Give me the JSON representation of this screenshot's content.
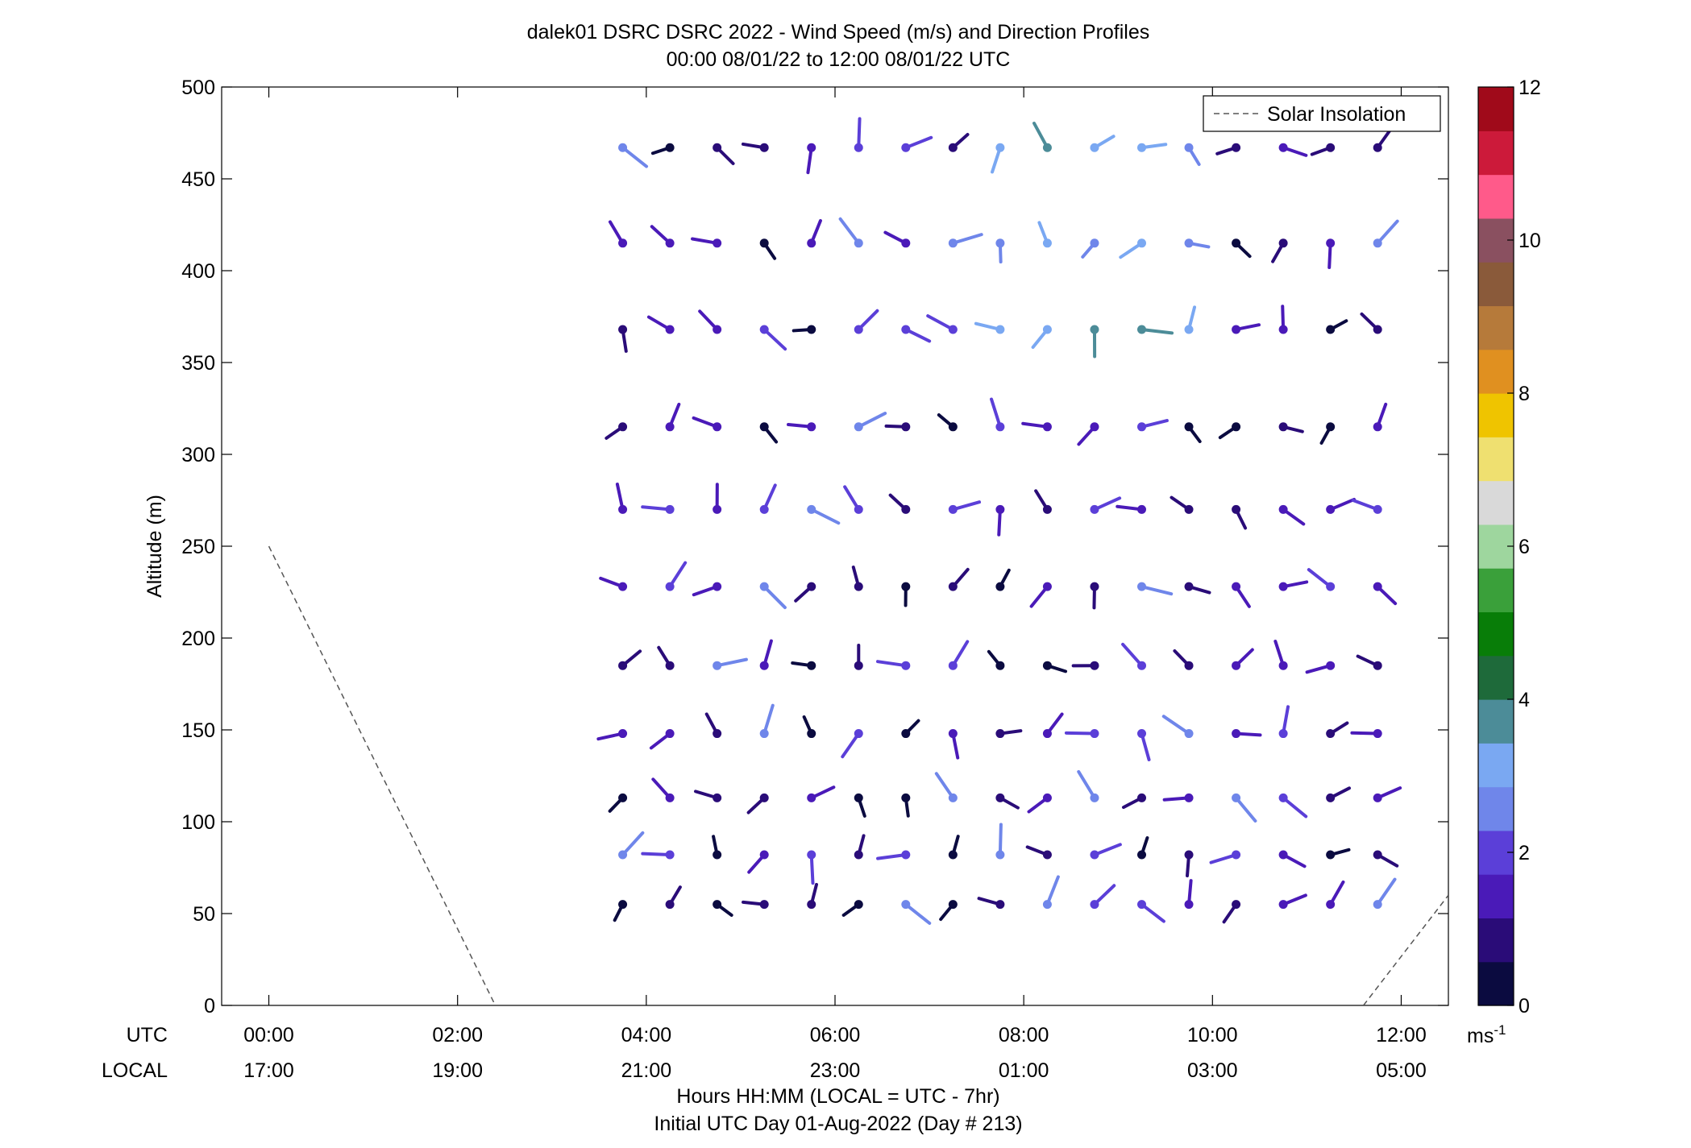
{
  "chart_data": {
    "type": "scatter",
    "title": "dalek01 DSRC DSRC 2022 - Wind Speed (m/s) and Direction Profiles",
    "subtitle": "00:00 08/01/22 to 12:00 08/01/22  UTC",
    "ylabel": "Altitude (m)",
    "xlabel": "Hours HH:MM  (LOCAL = UTC - 7hr)",
    "xlabel2": "Initial UTC Day 01-Aug-2022 (Day # 213)",
    "ylim": [
      0,
      500
    ],
    "xlim_hours": [
      -0.5,
      12.5
    ],
    "yticks": [
      0,
      50,
      100,
      150,
      200,
      250,
      300,
      350,
      400,
      450,
      500
    ],
    "utc_label": "UTC",
    "local_label": "LOCAL",
    "xticks_hours": [
      0,
      2,
      4,
      6,
      8,
      10,
      12
    ],
    "xtick_utc": [
      "00:00",
      "02:00",
      "04:00",
      "06:00",
      "08:00",
      "10:00",
      "12:00"
    ],
    "xtick_local": [
      "17:00",
      "19:00",
      "21:00",
      "23:00",
      "01:00",
      "03:00",
      "05:00"
    ],
    "legend": {
      "label": "Solar Insolation",
      "position": "top-right"
    },
    "colorbar": {
      "range": [
        0,
        12
      ],
      "ticks": [
        "0",
        "2",
        "4",
        "6",
        "8",
        "10",
        "12"
      ],
      "unit": "ms",
      "unit_exp": "-1",
      "colors": [
        "#0b0b40",
        "#2a0c78",
        "#4a1ab8",
        "#5b3fd8",
        "#6f86ea",
        "#7aa8f2",
        "#4c8c98",
        "#1e6a3a",
        "#087d08",
        "#3aa03a",
        "#9ed69e",
        "#d9d9d9",
        "#efe070",
        "#efc400",
        "#e09020",
        "#b67a3a",
        "#8a5a3a",
        "#8a5060",
        "#ff5a8a",
        "#cc1a3a",
        "#a00a1a"
      ]
    },
    "solar_insolation": {
      "segments": [
        [
          [
            0,
            250
          ],
          [
            2.4,
            0
          ]
        ],
        [
          [
            11.6,
            0
          ],
          [
            12.5,
            60
          ]
        ]
      ]
    },
    "profile_times_hours": [
      3.75,
      4.25,
      4.75,
      5.25,
      5.75,
      6.25,
      6.75,
      7.25,
      7.75,
      8.25,
      8.75,
      9.25,
      9.75,
      10.25,
      10.75,
      11.25,
      11.75
    ],
    "profile_altitudes_m": [
      55,
      82,
      113,
      148,
      185,
      228,
      270,
      315,
      368,
      415,
      467
    ]
  }
}
